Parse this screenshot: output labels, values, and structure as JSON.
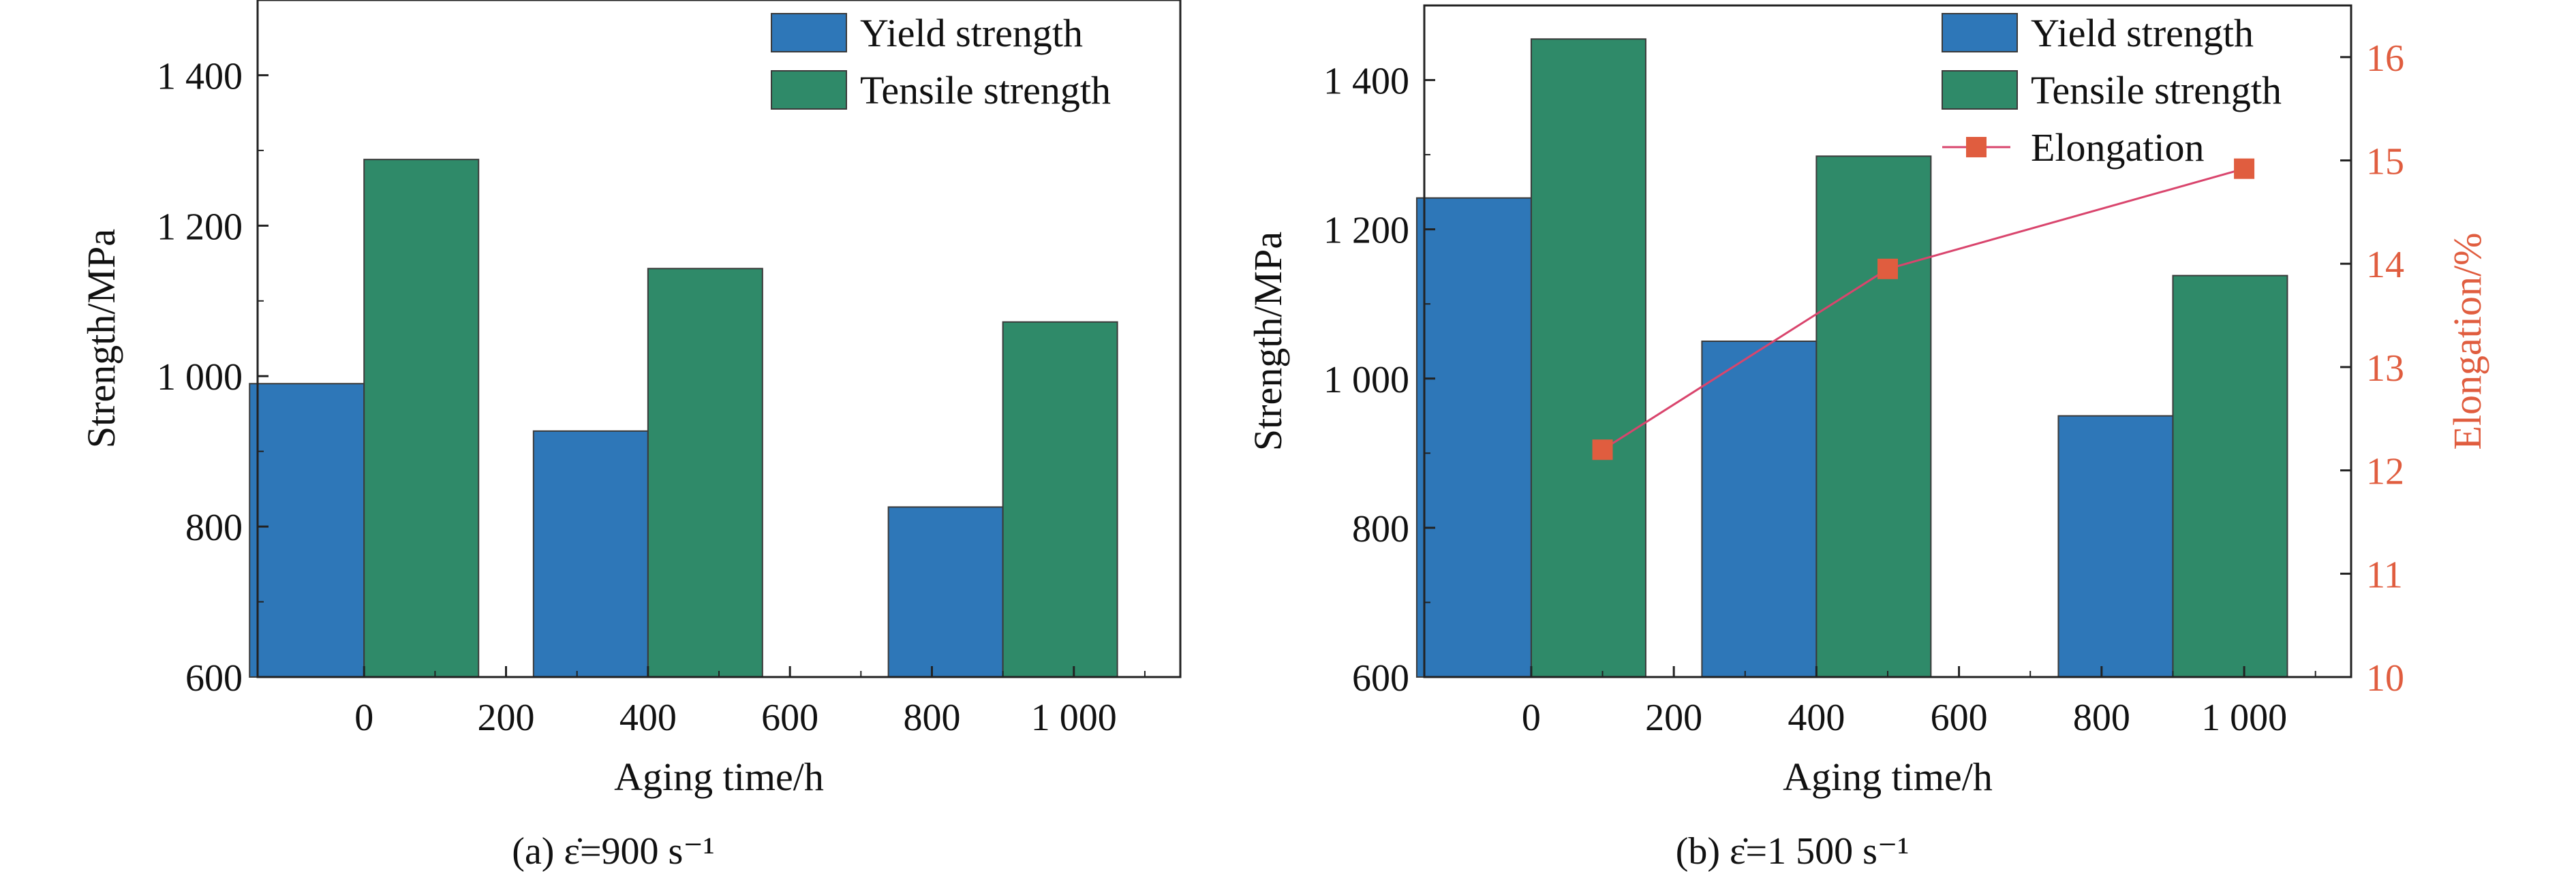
{
  "colors": {
    "yield": "#2e77b8",
    "tensile": "#2f8a69",
    "elongation": "#e05d3f",
    "elongation_line": "#d9456d",
    "right_axis": "#e05d3f",
    "axis": "#222222"
  },
  "chart_data": [
    {
      "type": "bar",
      "caption": "(a) ε̇=900 s⁻¹",
      "xlabel": "Aging time/h",
      "ylabel": "Strength/MPa",
      "ylim": [
        600,
        1500
      ],
      "yticks": [
        600,
        800,
        1000,
        1200,
        1400
      ],
      "ytick_labels": [
        "600",
        "800",
        "1 000",
        "1 200",
        "1 400"
      ],
      "xlim": [
        -150,
        1150
      ],
      "xticks": [
        0,
        200,
        400,
        600,
        800,
        1000
      ],
      "xtick_labels": [
        "0",
        "200",
        "400",
        "600",
        "800",
        "1 000"
      ],
      "legend_position": "top-right",
      "series": [
        {
          "name": "Yield strength",
          "color_key": "yield",
          "x": [
            0,
            400,
            900
          ],
          "values": [
            990,
            927,
            826
          ]
        },
        {
          "name": "Tensile strength",
          "color_key": "tensile",
          "x": [
            0,
            400,
            900
          ],
          "values": [
            1288,
            1143,
            1072
          ]
        }
      ]
    },
    {
      "type": "bar",
      "caption": "(b) ε̇=1 500 s⁻¹",
      "xlabel": "Aging time/h",
      "ylabel": "Strength/MPa",
      "y2label": "Elongation/%",
      "ylim": [
        600,
        1500
      ],
      "yticks": [
        600,
        800,
        1000,
        1200,
        1400
      ],
      "ytick_labels": [
        "600",
        "800",
        "1 000",
        "1 200",
        "1 400"
      ],
      "y2lim": [
        10,
        16.5
      ],
      "y2ticks": [
        10,
        11,
        12,
        13,
        14,
        15,
        16
      ],
      "y2tick_labels": [
        "10",
        "11",
        "12",
        "13",
        "14",
        "15",
        "16"
      ],
      "xlim": [
        -150,
        1150
      ],
      "xticks": [
        0,
        200,
        400,
        600,
        800,
        1000
      ],
      "xtick_labels": [
        "0",
        "200",
        "400",
        "600",
        "800",
        "1 000"
      ],
      "legend_position": "top-right",
      "series": [
        {
          "name": "Yield strength",
          "color_key": "yield",
          "x": [
            0,
            400,
            900
          ],
          "values": [
            1242,
            1050,
            950
          ]
        },
        {
          "name": "Tensile strength",
          "color_key": "tensile",
          "x": [
            0,
            400,
            900
          ],
          "values": [
            1455,
            1298,
            1138
          ]
        },
        {
          "name": "Elongation",
          "type": "line",
          "axis": "right",
          "color_key": "elongation",
          "x": [
            100,
            500,
            1000
          ],
          "values": [
            12.2,
            13.95,
            14.92
          ]
        }
      ]
    }
  ]
}
